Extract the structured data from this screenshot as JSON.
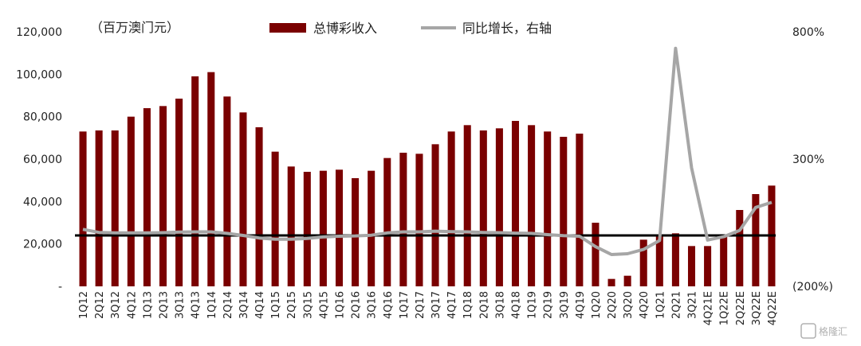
{
  "chart_data": {
    "type": "bar",
    "unit_label": "（百万澳门元）",
    "legend": {
      "bar_label": "总博彩收入",
      "line_label": "同比增长，右轴",
      "placement": "top-center"
    },
    "colors": {
      "bar": "#7a0000",
      "line": "#a6a6a6",
      "zero_line": "#000000"
    },
    "categories": [
      "1Q12",
      "2Q12",
      "3Q12",
      "4Q12",
      "1Q13",
      "2Q13",
      "3Q13",
      "4Q13",
      "1Q14",
      "2Q14",
      "3Q14",
      "4Q14",
      "1Q15",
      "2Q15",
      "3Q15",
      "4Q15",
      "1Q16",
      "2Q16",
      "3Q16",
      "4Q16",
      "1Q17",
      "2Q17",
      "3Q17",
      "4Q17",
      "1Q18",
      "2Q18",
      "3Q18",
      "4Q18",
      "1Q19",
      "2Q19",
      "3Q19",
      "4Q19",
      "1Q20",
      "2Q20",
      "3Q20",
      "4Q20",
      "1Q21",
      "2Q21",
      "3Q21",
      "4Q21E",
      "1Q22E",
      "2Q22E",
      "3Q22E",
      "4Q22E"
    ],
    "series": [
      {
        "name": "总博彩收入",
        "type": "bar",
        "axis": "left",
        "values": [
          73000,
          73500,
          73500,
          80000,
          84000,
          85000,
          88500,
          99000,
          101000,
          89500,
          82000,
          75000,
          63500,
          56500,
          54000,
          54500,
          55000,
          51000,
          54500,
          60500,
          63000,
          62500,
          67000,
          73000,
          76000,
          73500,
          74500,
          78000,
          76000,
          73000,
          70500,
          72000,
          30000,
          3500,
          5000,
          22000,
          24500,
          25000,
          19000,
          19000,
          24500,
          36000,
          43500,
          47500
        ]
      },
      {
        "name": "同比增长，右轴",
        "type": "line",
        "axis": "right",
        "values": [
          24,
          12,
          10,
          10,
          10,
          11,
          13,
          14,
          14,
          8,
          0,
          -10,
          -15,
          -15,
          -12,
          -6,
          -3,
          -2,
          1,
          10,
          14,
          14,
          17,
          15,
          14,
          12,
          11,
          9,
          8,
          3,
          -1,
          -3,
          -44,
          -75,
          -72,
          -55,
          -20,
          735,
          265,
          -18,
          -5,
          20,
          110,
          130
        ]
      }
    ],
    "left_axis": {
      "ylim": [
        0,
        120000
      ],
      "ticks": [
        0,
        20000,
        40000,
        60000,
        80000,
        100000,
        120000
      ],
      "tick_labels": [
        "-",
        "20,000",
        "40,000",
        "60,000",
        "80,000",
        "100,000",
        "120,000"
      ]
    },
    "right_axis": {
      "ylim": [
        -200,
        800
      ],
      "ticks": [
        -200,
        300,
        800
      ],
      "tick_labels": [
        "(200%)",
        "300%",
        "800%"
      ]
    },
    "grid": false,
    "watermark": "格隆汇"
  }
}
